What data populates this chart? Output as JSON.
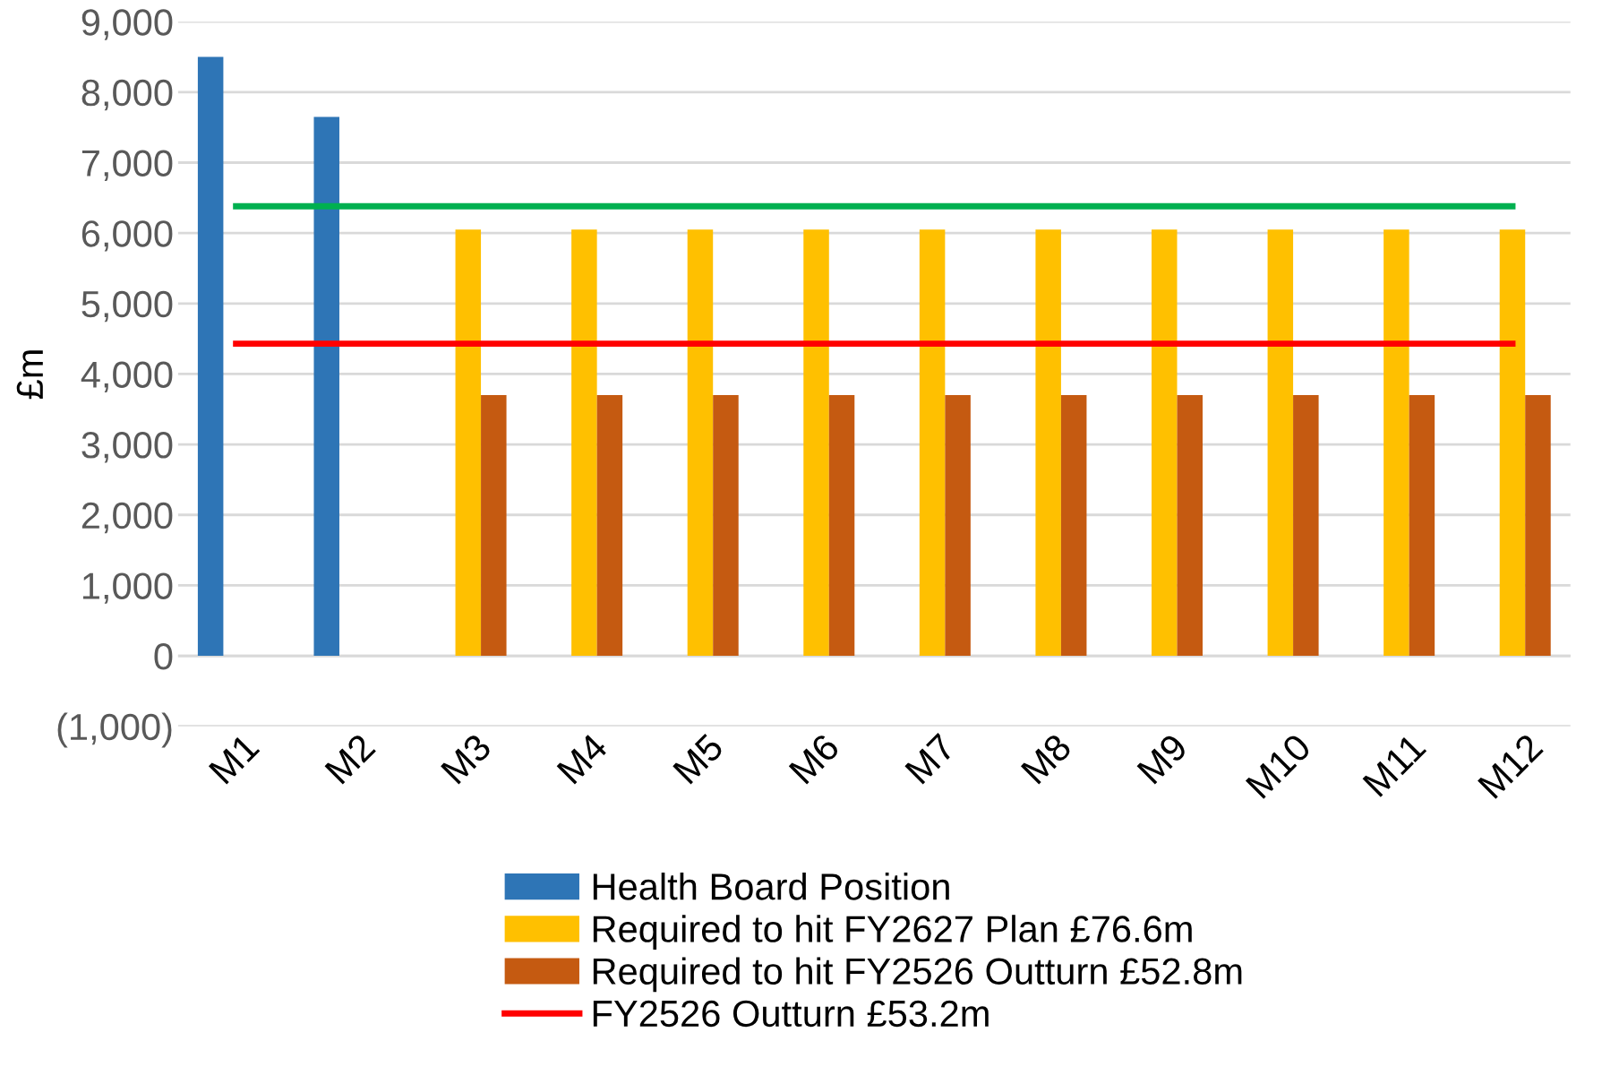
{
  "chart_data": {
    "type": "bar",
    "ylabel": "£m",
    "categories": [
      "M1",
      "M2",
      "M3",
      "M4",
      "M5",
      "M6",
      "M7",
      "M8",
      "M9",
      "M10",
      "M11",
      "M12"
    ],
    "series": [
      {
        "name": "Health Board Position",
        "color": "#2e75b6",
        "values": [
          8500,
          7650,
          null,
          null,
          null,
          null,
          null,
          null,
          null,
          null,
          null,
          null
        ]
      },
      {
        "name": "Required to hit FY2627 Plan £76.6m",
        "color": "#ffc000",
        "values": [
          null,
          null,
          6050,
          6050,
          6050,
          6050,
          6050,
          6050,
          6050,
          6050,
          6050,
          6050
        ]
      },
      {
        "name": "Required to hit FY2526 Outturn £52.8m",
        "color": "#c55a11",
        "values": [
          null,
          null,
          3700,
          3700,
          3700,
          3700,
          3700,
          3700,
          3700,
          3700,
          3700,
          3700
        ]
      },
      {
        "name": "FY2526 Outturn £53.2m",
        "type": "line",
        "color": "#ff0000",
        "values": [
          4430,
          4430,
          4430,
          4430,
          4430,
          4430,
          4430,
          4430,
          4430,
          4430,
          4430,
          4430
        ]
      },
      {
        "type": "line",
        "color": "#00b050",
        "values": [
          6380,
          6380,
          6380,
          6380,
          6380,
          6380,
          6380,
          6380,
          6380,
          6380,
          6380,
          6380
        ]
      }
    ],
    "ylim": [
      -1000,
      9000
    ],
    "yticks": [
      {
        "value": -1000,
        "label": "(1,000)"
      },
      0,
      {
        "value": 1000,
        "label": "1,000"
      },
      {
        "value": 2000,
        "label": "2,000"
      },
      {
        "value": 3000,
        "label": "3,000"
      },
      {
        "value": 4000,
        "label": "4,000"
      },
      {
        "value": 5000,
        "label": "5,000"
      },
      {
        "value": 6000,
        "label": "6,000"
      },
      {
        "value": 7000,
        "label": "7,000"
      },
      {
        "value": 8000,
        "label": "8,000"
      },
      {
        "value": 9000,
        "label": "9,000"
      }
    ],
    "grid": "y",
    "legend": "bottom"
  }
}
